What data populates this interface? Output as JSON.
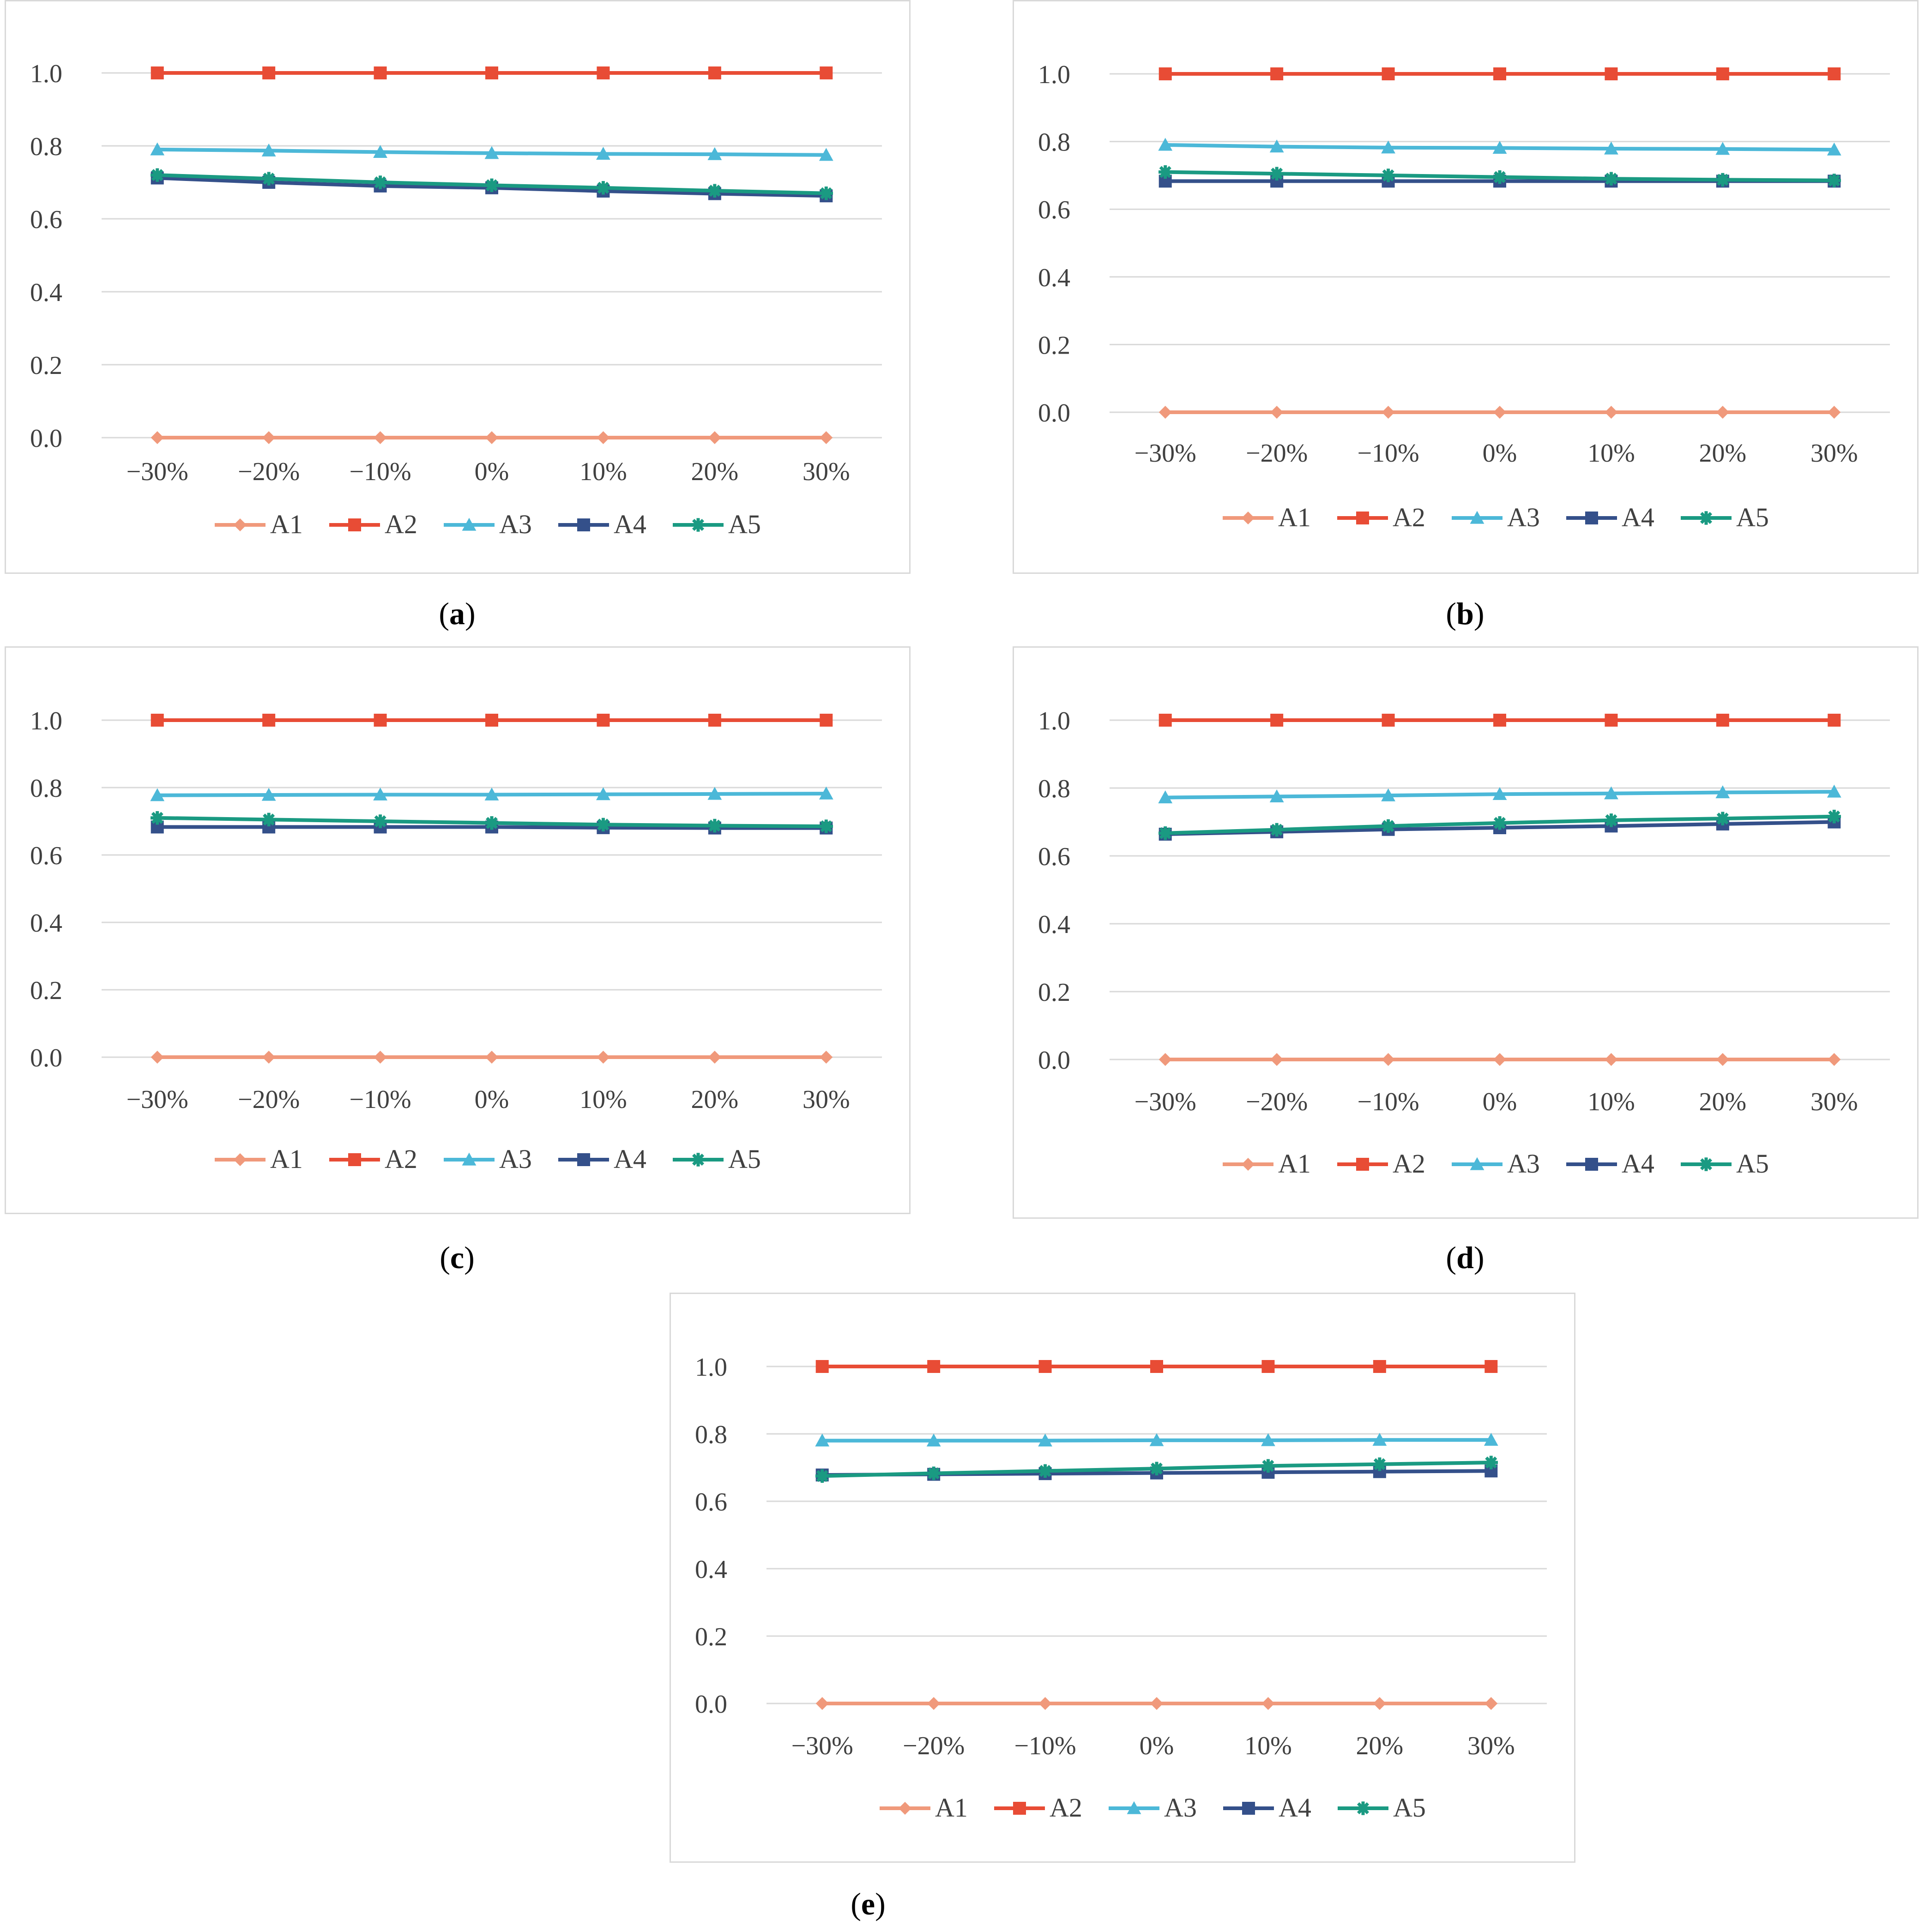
{
  "colors": {
    "A1": "#f0997b",
    "A2": "#e84c35",
    "A3": "#4cb8d8",
    "A4": "#34508a",
    "A5": "#1a9a82",
    "grid": "#d9d9d9",
    "text": "#404040"
  },
  "chart_data": [
    {
      "panel": "a",
      "type": "line",
      "categories": [
        "−30%",
        "−20%",
        "−10%",
        "0%",
        "10%",
        "20%",
        "30%"
      ],
      "ylim": [
        0,
        1.0
      ],
      "yticks": [
        "0.0",
        "0.2",
        "0.4",
        "0.6",
        "0.8",
        "1.0"
      ],
      "legend_position": "bottom",
      "series": [
        {
          "name": "A1",
          "marker": "diamond",
          "values": [
            0,
            0,
            0,
            0,
            0,
            0,
            0
          ]
        },
        {
          "name": "A2",
          "marker": "square",
          "values": [
            1,
            1,
            1,
            1,
            1,
            1,
            1
          ]
        },
        {
          "name": "A3",
          "marker": "triangle",
          "values": [
            0.79,
            0.787,
            0.783,
            0.78,
            0.778,
            0.777,
            0.775
          ]
        },
        {
          "name": "A4",
          "marker": "square",
          "values": [
            0.712,
            0.7,
            0.69,
            0.685,
            0.676,
            0.669,
            0.663
          ]
        },
        {
          "name": "A5",
          "marker": "star",
          "values": [
            0.72,
            0.71,
            0.7,
            0.692,
            0.685,
            0.677,
            0.67
          ]
        }
      ]
    },
    {
      "panel": "b",
      "type": "line",
      "categories": [
        "−30%",
        "−20%",
        "−10%",
        "0%",
        "10%",
        "20%",
        "30%"
      ],
      "ylim": [
        0,
        1.0
      ],
      "yticks": [
        "0.0",
        "0.2",
        "0.4",
        "0.6",
        "0.8",
        "1.0"
      ],
      "legend_position": "bottom",
      "series": [
        {
          "name": "A1",
          "marker": "diamond",
          "values": [
            0,
            0,
            0,
            0,
            0,
            0,
            0
          ]
        },
        {
          "name": "A2",
          "marker": "square",
          "values": [
            1,
            1,
            1,
            1,
            1,
            1,
            1
          ]
        },
        {
          "name": "A3",
          "marker": "triangle",
          "values": [
            0.79,
            0.785,
            0.782,
            0.781,
            0.779,
            0.778,
            0.776
          ]
        },
        {
          "name": "A4",
          "marker": "square",
          "values": [
            0.683,
            0.683,
            0.683,
            0.683,
            0.683,
            0.683,
            0.683
          ]
        },
        {
          "name": "A5",
          "marker": "star",
          "values": [
            0.71,
            0.705,
            0.7,
            0.695,
            0.69,
            0.687,
            0.685
          ]
        }
      ]
    },
    {
      "panel": "c",
      "type": "line",
      "categories": [
        "−30%",
        "−20%",
        "−10%",
        "0%",
        "10%",
        "20%",
        "30%"
      ],
      "ylim": [
        0,
        1.0
      ],
      "yticks": [
        "0.0",
        "0.2",
        "0.4",
        "0.6",
        "0.8",
        "1.0"
      ],
      "legend_position": "bottom",
      "series": [
        {
          "name": "A1",
          "marker": "diamond",
          "values": [
            0,
            0,
            0,
            0,
            0,
            0,
            0
          ]
        },
        {
          "name": "A2",
          "marker": "square",
          "values": [
            1,
            1,
            1,
            1,
            1,
            1,
            1
          ]
        },
        {
          "name": "A3",
          "marker": "triangle",
          "values": [
            0.777,
            0.778,
            0.779,
            0.779,
            0.78,
            0.781,
            0.782
          ]
        },
        {
          "name": "A4",
          "marker": "square",
          "values": [
            0.683,
            0.683,
            0.683,
            0.683,
            0.681,
            0.68,
            0.68
          ]
        },
        {
          "name": "A5",
          "marker": "star",
          "values": [
            0.71,
            0.705,
            0.7,
            0.695,
            0.69,
            0.687,
            0.685
          ]
        }
      ]
    },
    {
      "panel": "d",
      "type": "line",
      "categories": [
        "−30%",
        "−20%",
        "−10%",
        "0%",
        "10%",
        "20%",
        "30%"
      ],
      "ylim": [
        0,
        1.0
      ],
      "yticks": [
        "0.0",
        "0.2",
        "0.4",
        "0.6",
        "0.8",
        "1.0"
      ],
      "legend_position": "bottom",
      "series": [
        {
          "name": "A1",
          "marker": "diamond",
          "values": [
            0,
            0,
            0,
            0,
            0,
            0,
            0
          ]
        },
        {
          "name": "A2",
          "marker": "square",
          "values": [
            1,
            1,
            1,
            1,
            1,
            1,
            1
          ]
        },
        {
          "name": "A3",
          "marker": "triangle",
          "values": [
            0.772,
            0.775,
            0.778,
            0.782,
            0.784,
            0.787,
            0.789
          ]
        },
        {
          "name": "A4",
          "marker": "square",
          "values": [
            0.664,
            0.671,
            0.678,
            0.683,
            0.688,
            0.694,
            0.7
          ]
        },
        {
          "name": "A5",
          "marker": "star",
          "values": [
            0.667,
            0.677,
            0.688,
            0.697,
            0.705,
            0.71,
            0.716
          ]
        }
      ]
    },
    {
      "panel": "e",
      "type": "line",
      "categories": [
        "−30%",
        "−20%",
        "−10%",
        "0%",
        "10%",
        "20%",
        "30%"
      ],
      "ylim": [
        0,
        1.0
      ],
      "yticks": [
        "0.0",
        "0.2",
        "0.4",
        "0.6",
        "0.8",
        "1.0"
      ],
      "legend_position": "bottom",
      "series": [
        {
          "name": "A1",
          "marker": "diamond",
          "values": [
            0,
            0,
            0,
            0,
            0,
            0,
            0
          ]
        },
        {
          "name": "A2",
          "marker": "square",
          "values": [
            1,
            1,
            1,
            1,
            1,
            1,
            1
          ]
        },
        {
          "name": "A3",
          "marker": "triangle",
          "values": [
            0.78,
            0.78,
            0.78,
            0.781,
            0.781,
            0.782,
            0.782
          ]
        },
        {
          "name": "A4",
          "marker": "square",
          "values": [
            0.678,
            0.68,
            0.682,
            0.684,
            0.686,
            0.688,
            0.69
          ]
        },
        {
          "name": "A5",
          "marker": "star",
          "values": [
            0.675,
            0.683,
            0.69,
            0.697,
            0.705,
            0.71,
            0.715
          ]
        }
      ]
    }
  ],
  "captions": {
    "a": {
      "open": "(",
      "letter": "a",
      "close": ")"
    },
    "b": {
      "open": "(",
      "letter": "b",
      "close": ")"
    },
    "c": {
      "open": "(",
      "letter": "c",
      "close": ")"
    },
    "d": {
      "open": "(",
      "letter": "d",
      "close": ")"
    },
    "e": {
      "open": "(",
      "letter": "e",
      "close": ")"
    }
  }
}
